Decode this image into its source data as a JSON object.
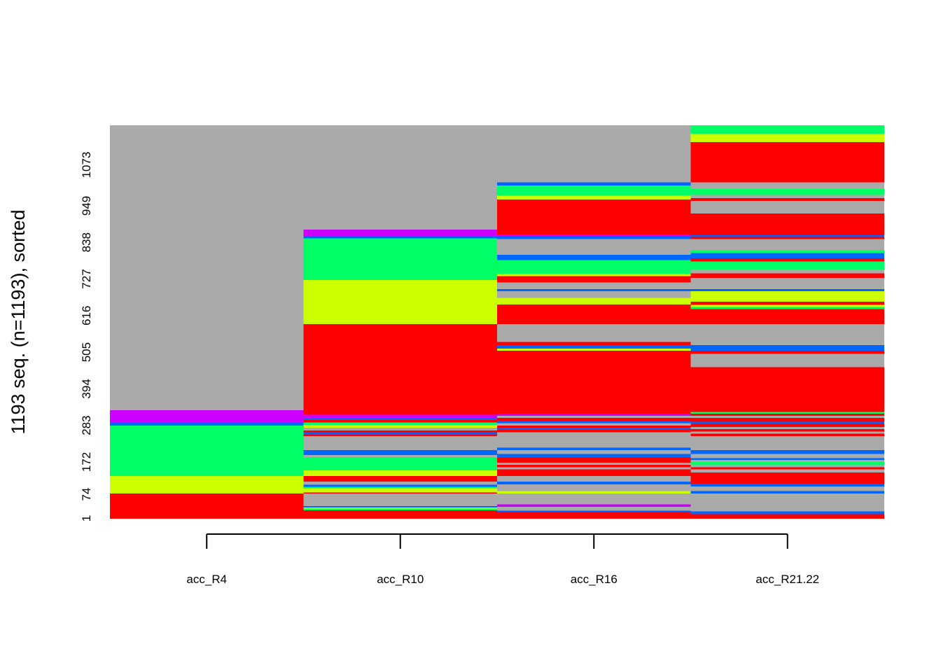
{
  "chart_data": {
    "type": "heatmap",
    "title": "",
    "ylabel": "1193 seq. (n=1193), sorted",
    "xlabel": "",
    "n_sequences": 1193,
    "ylim": [
      0,
      1193
    ],
    "categories": [
      "acc_R4",
      "acc_R10",
      "acc_R16",
      "acc_R21.22"
    ],
    "y_ticks": [
      1,
      74,
      172,
      283,
      394,
      505,
      616,
      727,
      838,
      949,
      1073
    ],
    "y_tick_labels": [
      "1",
      "74",
      "172",
      "283",
      "394",
      "505",
      "616",
      "727",
      "838",
      "949",
      "1073"
    ],
    "state_colors": {
      "red": "#FF0000",
      "yellow": "#CCFF00",
      "green": "#00FF66",
      "blue": "#0066FF",
      "purple": "#CC00FF",
      "gray": "#AAAAAA"
    },
    "series": [
      {
        "category": "acc_R4",
        "segments": [
          {
            "from": 0,
            "to": 76,
            "state": "red"
          },
          {
            "from": 76,
            "to": 130,
            "state": "yellow"
          },
          {
            "from": 130,
            "to": 282,
            "state": "green"
          },
          {
            "from": 282,
            "to": 292,
            "state": "blue"
          },
          {
            "from": 292,
            "to": 329,
            "state": "purple"
          },
          {
            "from": 329,
            "to": 1193,
            "state": "gray"
          }
        ]
      },
      {
        "category": "acc_R10",
        "segments": [
          {
            "from": 0,
            "to": 26,
            "state": "red"
          },
          {
            "from": 26,
            "to": 31,
            "state": "green"
          },
          {
            "from": 31,
            "to": 34,
            "state": "yellow"
          },
          {
            "from": 34,
            "to": 38,
            "state": "blue"
          },
          {
            "from": 38,
            "to": 76,
            "state": "gray"
          },
          {
            "from": 76,
            "to": 80,
            "state": "red"
          },
          {
            "from": 80,
            "to": 92,
            "state": "yellow"
          },
          {
            "from": 92,
            "to": 97,
            "state": "green"
          },
          {
            "from": 97,
            "to": 103,
            "state": "blue"
          },
          {
            "from": 103,
            "to": 112,
            "state": "gray"
          },
          {
            "from": 112,
            "to": 130,
            "state": "red"
          },
          {
            "from": 130,
            "to": 147,
            "state": "yellow"
          },
          {
            "from": 147,
            "to": 187,
            "state": "green"
          },
          {
            "from": 187,
            "to": 193,
            "state": "gray"
          },
          {
            "from": 193,
            "to": 208,
            "state": "blue"
          },
          {
            "from": 208,
            "to": 250,
            "state": "gray"
          },
          {
            "from": 250,
            "to": 256,
            "state": "red"
          },
          {
            "from": 256,
            "to": 262,
            "state": "blue"
          },
          {
            "from": 262,
            "to": 268,
            "state": "red"
          },
          {
            "from": 268,
            "to": 276,
            "state": "gray"
          },
          {
            "from": 276,
            "to": 284,
            "state": "yellow"
          },
          {
            "from": 284,
            "to": 292,
            "state": "green"
          },
          {
            "from": 292,
            "to": 299,
            "state": "red"
          },
          {
            "from": 299,
            "to": 304,
            "state": "blue"
          },
          {
            "from": 304,
            "to": 315,
            "state": "purple"
          },
          {
            "from": 315,
            "to": 329,
            "state": "red"
          },
          {
            "from": 329,
            "to": 590,
            "state": "red"
          },
          {
            "from": 590,
            "to": 724,
            "state": "yellow"
          },
          {
            "from": 724,
            "to": 850,
            "state": "green"
          },
          {
            "from": 850,
            "to": 856,
            "state": "blue"
          },
          {
            "from": 856,
            "to": 877,
            "state": "purple"
          },
          {
            "from": 877,
            "to": 1193,
            "state": "gray"
          }
        ]
      },
      {
        "category": "acc_R16",
        "segments": [
          {
            "from": 0,
            "to": 20,
            "state": "red"
          },
          {
            "from": 20,
            "to": 24,
            "state": "blue"
          },
          {
            "from": 24,
            "to": 36,
            "state": "gray"
          },
          {
            "from": 36,
            "to": 44,
            "state": "purple"
          },
          {
            "from": 44,
            "to": 76,
            "state": "gray"
          },
          {
            "from": 76,
            "to": 84,
            "state": "yellow"
          },
          {
            "from": 84,
            "to": 104,
            "state": "gray"
          },
          {
            "from": 104,
            "to": 112,
            "state": "blue"
          },
          {
            "from": 112,
            "to": 130,
            "state": "gray"
          },
          {
            "from": 130,
            "to": 150,
            "state": "red"
          },
          {
            "from": 150,
            "to": 156,
            "state": "gray"
          },
          {
            "from": 156,
            "to": 164,
            "state": "red"
          },
          {
            "from": 164,
            "to": 170,
            "state": "gray"
          },
          {
            "from": 170,
            "to": 186,
            "state": "red"
          },
          {
            "from": 186,
            "to": 196,
            "state": "blue"
          },
          {
            "from": 196,
            "to": 208,
            "state": "gray"
          },
          {
            "from": 208,
            "to": 216,
            "state": "blue"
          },
          {
            "from": 216,
            "to": 262,
            "state": "gray"
          },
          {
            "from": 262,
            "to": 270,
            "state": "red"
          },
          {
            "from": 270,
            "to": 276,
            "state": "blue"
          },
          {
            "from": 276,
            "to": 282,
            "state": "red"
          },
          {
            "from": 282,
            "to": 290,
            "state": "gray"
          },
          {
            "from": 290,
            "to": 296,
            "state": "blue"
          },
          {
            "from": 296,
            "to": 306,
            "state": "red"
          },
          {
            "from": 306,
            "to": 312,
            "state": "gray"
          },
          {
            "from": 312,
            "to": 318,
            "state": "purple"
          },
          {
            "from": 318,
            "to": 329,
            "state": "red"
          },
          {
            "from": 329,
            "to": 510,
            "state": "red"
          },
          {
            "from": 510,
            "to": 516,
            "state": "yellow"
          },
          {
            "from": 516,
            "to": 526,
            "state": "blue"
          },
          {
            "from": 526,
            "to": 536,
            "state": "red"
          },
          {
            "from": 536,
            "to": 590,
            "state": "gray"
          },
          {
            "from": 590,
            "to": 650,
            "state": "red"
          },
          {
            "from": 650,
            "to": 670,
            "state": "yellow"
          },
          {
            "from": 670,
            "to": 690,
            "state": "gray"
          },
          {
            "from": 690,
            "to": 696,
            "state": "blue"
          },
          {
            "from": 696,
            "to": 716,
            "state": "gray"
          },
          {
            "from": 716,
            "to": 736,
            "state": "red"
          },
          {
            "from": 736,
            "to": 742,
            "state": "yellow"
          },
          {
            "from": 742,
            "to": 784,
            "state": "green"
          },
          {
            "from": 784,
            "to": 800,
            "state": "blue"
          },
          {
            "from": 800,
            "to": 848,
            "state": "gray"
          },
          {
            "from": 848,
            "to": 856,
            "state": "blue"
          },
          {
            "from": 856,
            "to": 862,
            "state": "purple"
          },
          {
            "from": 862,
            "to": 968,
            "state": "red"
          },
          {
            "from": 968,
            "to": 980,
            "state": "yellow"
          },
          {
            "from": 980,
            "to": 1010,
            "state": "green"
          },
          {
            "from": 1010,
            "to": 1020,
            "state": "blue"
          },
          {
            "from": 1020,
            "to": 1193,
            "state": "gray"
          }
        ]
      },
      {
        "category": "acc_R21.22",
        "segments": [
          {
            "from": 0,
            "to": 14,
            "state": "red"
          },
          {
            "from": 14,
            "to": 22,
            "state": "blue"
          },
          {
            "from": 22,
            "to": 44,
            "state": "gray"
          },
          {
            "from": 44,
            "to": 76,
            "state": "gray"
          },
          {
            "from": 76,
            "to": 84,
            "state": "blue"
          },
          {
            "from": 84,
            "to": 98,
            "state": "gray"
          },
          {
            "from": 98,
            "to": 106,
            "state": "blue"
          },
          {
            "from": 106,
            "to": 130,
            "state": "red"
          },
          {
            "from": 130,
            "to": 140,
            "state": "red"
          },
          {
            "from": 140,
            "to": 150,
            "state": "gray"
          },
          {
            "from": 150,
            "to": 156,
            "state": "red"
          },
          {
            "from": 156,
            "to": 162,
            "state": "gray"
          },
          {
            "from": 162,
            "to": 172,
            "state": "green"
          },
          {
            "from": 172,
            "to": 178,
            "state": "gray"
          },
          {
            "from": 178,
            "to": 184,
            "state": "blue"
          },
          {
            "from": 184,
            "to": 196,
            "state": "gray"
          },
          {
            "from": 196,
            "to": 208,
            "state": "blue"
          },
          {
            "from": 208,
            "to": 250,
            "state": "gray"
          },
          {
            "from": 250,
            "to": 258,
            "state": "red"
          },
          {
            "from": 258,
            "to": 264,
            "state": "gray"
          },
          {
            "from": 264,
            "to": 272,
            "state": "red"
          },
          {
            "from": 272,
            "to": 278,
            "state": "gray"
          },
          {
            "from": 278,
            "to": 288,
            "state": "red"
          },
          {
            "from": 288,
            "to": 294,
            "state": "blue"
          },
          {
            "from": 294,
            "to": 306,
            "state": "red"
          },
          {
            "from": 306,
            "to": 312,
            "state": "gray"
          },
          {
            "from": 312,
            "to": 318,
            "state": "red"
          },
          {
            "from": 318,
            "to": 324,
            "state": "green"
          },
          {
            "from": 324,
            "to": 329,
            "state": "red"
          },
          {
            "from": 329,
            "to": 460,
            "state": "red"
          },
          {
            "from": 460,
            "to": 500,
            "state": "gray"
          },
          {
            "from": 500,
            "to": 510,
            "state": "red"
          },
          {
            "from": 510,
            "to": 526,
            "state": "blue"
          },
          {
            "from": 526,
            "to": 536,
            "state": "gray"
          },
          {
            "from": 536,
            "to": 590,
            "state": "gray"
          },
          {
            "from": 590,
            "to": 636,
            "state": "red"
          },
          {
            "from": 636,
            "to": 642,
            "state": "green"
          },
          {
            "from": 642,
            "to": 648,
            "state": "yellow"
          },
          {
            "from": 648,
            "to": 658,
            "state": "red"
          },
          {
            "from": 658,
            "to": 690,
            "state": "yellow"
          },
          {
            "from": 690,
            "to": 696,
            "state": "blue"
          },
          {
            "from": 696,
            "to": 730,
            "state": "gray"
          },
          {
            "from": 730,
            "to": 744,
            "state": "red"
          },
          {
            "from": 744,
            "to": 756,
            "state": "gray"
          },
          {
            "from": 756,
            "to": 780,
            "state": "green"
          },
          {
            "from": 780,
            "to": 790,
            "state": "red"
          },
          {
            "from": 790,
            "to": 806,
            "state": "blue"
          },
          {
            "from": 806,
            "to": 814,
            "state": "green"
          },
          {
            "from": 814,
            "to": 848,
            "state": "gray"
          },
          {
            "from": 848,
            "to": 854,
            "state": "red"
          },
          {
            "from": 854,
            "to": 860,
            "state": "blue"
          },
          {
            "from": 860,
            "to": 880,
            "state": "red"
          },
          {
            "from": 880,
            "to": 926,
            "state": "red"
          },
          {
            "from": 926,
            "to": 964,
            "state": "gray"
          },
          {
            "from": 964,
            "to": 972,
            "state": "red"
          },
          {
            "from": 972,
            "to": 982,
            "state": "gray"
          },
          {
            "from": 982,
            "to": 1000,
            "state": "green"
          },
          {
            "from": 1000,
            "to": 1020,
            "state": "gray"
          },
          {
            "from": 1020,
            "to": 1142,
            "state": "red"
          },
          {
            "from": 1142,
            "to": 1168,
            "state": "yellow"
          },
          {
            "from": 1168,
            "to": 1193,
            "state": "green"
          }
        ]
      }
    ]
  }
}
